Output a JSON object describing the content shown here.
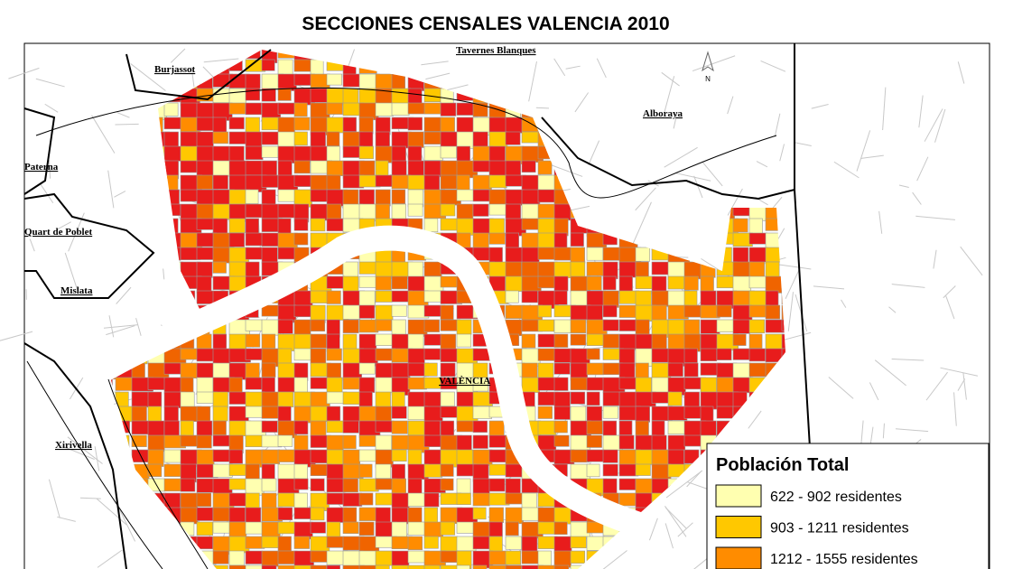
{
  "title": "SECCIONES CENSALES VALENCIA 2010",
  "places": [
    "Burjassot",
    "Tavernes Blanques",
    "Alboraya",
    "Paterna",
    "Quart de Poblet",
    "Mislata",
    "VALÈNCIA",
    "Xirivella"
  ],
  "north": "N",
  "legend": {
    "title": "Población Total",
    "items": [
      {
        "label": "622 - 902 residentes",
        "color": "#ffffb0"
      },
      {
        "label": "903 - 1211 residentes",
        "color": "#ffc800"
      },
      {
        "label": "1212 - 1555 residentes",
        "color": "#ff8c00"
      }
    ]
  }
}
